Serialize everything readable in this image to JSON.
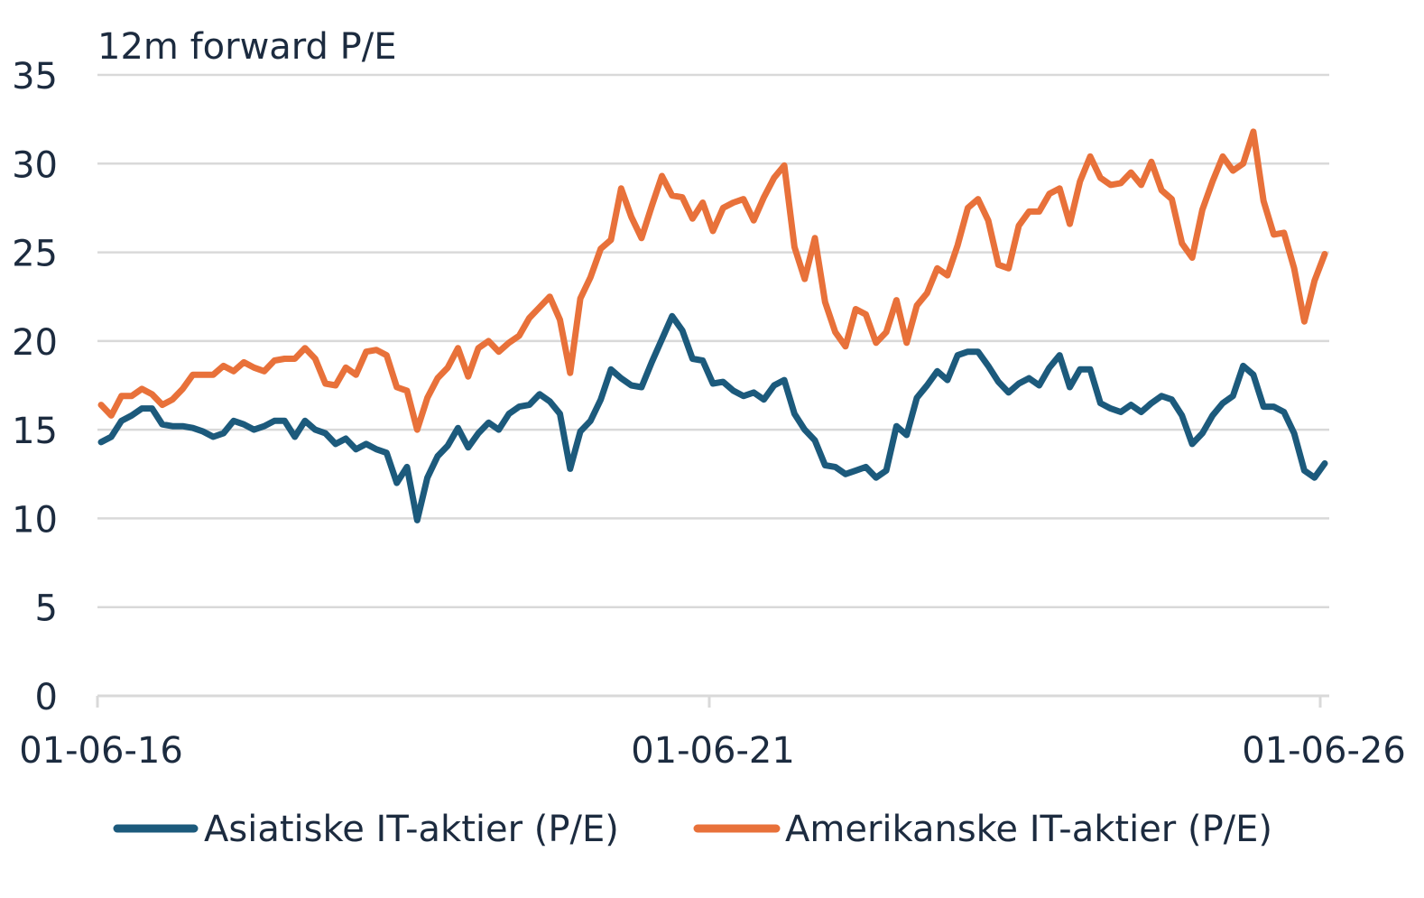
{
  "chart_data": {
    "type": "line",
    "title": "",
    "ylabel": "12m forward P/E",
    "xlabel": "",
    "ylim": [
      0,
      35
    ],
    "yticks": [
      "0",
      "5",
      "10",
      "15",
      "20",
      "25",
      "30",
      "35"
    ],
    "xticks": [
      "01-06-16",
      "01-06-21",
      "01-06-26"
    ],
    "grid": true,
    "legend": "bottom",
    "series": [
      {
        "name": "Asiatiske IT-aktier (P/E)",
        "color": "#1c5a7c",
        "values": [
          14.3,
          14.6,
          15.5,
          15.8,
          16.2,
          16.2,
          15.3,
          15.2,
          15.2,
          15.1,
          14.9,
          14.6,
          14.8,
          15.5,
          15.3,
          15.0,
          15.2,
          15.5,
          15.5,
          14.6,
          15.5,
          15.0,
          14.8,
          14.2,
          14.5,
          13.9,
          14.2,
          13.9,
          13.7,
          12.0,
          12.9,
          9.9,
          12.3,
          13.5,
          14.1,
          15.1,
          14.0,
          14.8,
          15.4,
          15.0,
          15.9,
          16.3,
          16.4,
          17.0,
          16.6,
          15.9,
          12.8,
          14.9,
          15.5,
          16.7,
          18.4,
          17.9,
          17.5,
          17.4,
          18.8,
          20.1,
          21.4,
          20.6,
          19.0,
          18.9,
          17.6,
          17.7,
          17.2,
          16.9,
          17.1,
          16.7,
          17.5,
          17.8,
          15.9,
          15.0,
          14.4,
          13.0,
          12.9,
          12.5,
          12.7,
          12.9,
          12.3,
          12.7,
          15.2,
          14.7,
          16.8,
          17.5,
          18.3,
          17.8,
          19.2,
          19.4,
          19.4,
          18.6,
          17.7,
          17.1,
          17.6,
          17.9,
          17.5,
          18.5,
          19.2,
          17.4,
          18.4,
          18.4,
          16.5,
          16.2,
          16.0,
          16.4,
          16.0,
          16.5,
          16.9,
          16.7,
          15.8,
          14.2,
          14.8,
          15.8,
          16.5,
          16.9,
          18.6,
          18.1,
          16.3,
          16.3,
          16.0,
          14.8,
          12.7,
          12.3,
          13.1
        ]
      },
      {
        "name": "Amerikanske IT-aktier (P/E)",
        "color": "#e8713a",
        "values": [
          16.4,
          15.8,
          16.9,
          16.9,
          17.3,
          17.0,
          16.4,
          16.7,
          17.3,
          18.1,
          18.1,
          18.1,
          18.6,
          18.3,
          18.8,
          18.5,
          18.3,
          18.9,
          19.0,
          19.0,
          19.6,
          19.0,
          17.6,
          17.5,
          18.5,
          18.1,
          19.4,
          19.5,
          19.2,
          17.4,
          17.2,
          15.0,
          16.8,
          17.9,
          18.5,
          19.6,
          18.0,
          19.6,
          20.0,
          19.4,
          19.9,
          20.3,
          21.3,
          21.9,
          22.5,
          21.2,
          18.2,
          22.4,
          23.6,
          25.2,
          25.7,
          28.6,
          27.0,
          25.8,
          27.6,
          29.3,
          28.2,
          28.1,
          26.9,
          27.8,
          26.2,
          27.5,
          27.8,
          28.0,
          26.8,
          28.1,
          29.2,
          29.9,
          25.3,
          23.5,
          25.8,
          22.2,
          20.5,
          19.7,
          21.8,
          21.5,
          19.9,
          20.5,
          22.3,
          19.9,
          22.0,
          22.7,
          24.1,
          23.7,
          25.4,
          27.5,
          28.0,
          26.8,
          24.3,
          24.1,
          26.5,
          27.3,
          27.3,
          28.3,
          28.6,
          26.6,
          29.0,
          30.4,
          29.2,
          28.8,
          28.9,
          29.5,
          28.8,
          30.1,
          28.5,
          28.0,
          25.5,
          24.7,
          27.4,
          29.0,
          30.4,
          29.6,
          30.0,
          31.8,
          27.9,
          26.0,
          26.1,
          24.1,
          21.1,
          23.4,
          24.9
        ]
      }
    ]
  }
}
